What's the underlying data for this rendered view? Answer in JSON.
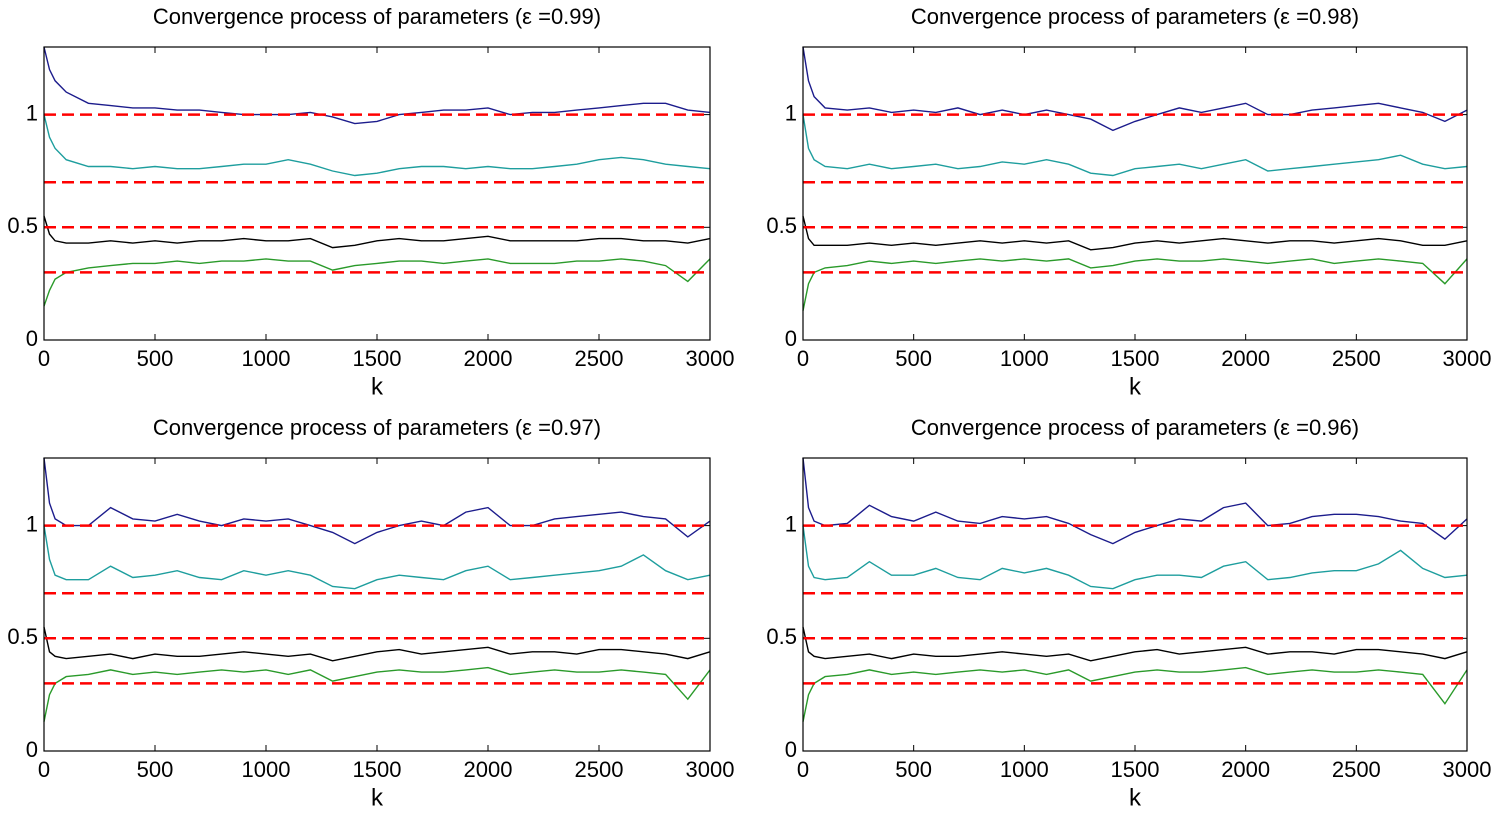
{
  "chart_data": [
    {
      "type": "line",
      "title": "Convergence process of parameters (ε =0.99)",
      "x_label": "k",
      "x": [
        0,
        25,
        50,
        100,
        200,
        300,
        400,
        500,
        600,
        700,
        800,
        900,
        1000,
        1100,
        1200,
        1300,
        1400,
        1500,
        1600,
        1700,
        1800,
        1900,
        2000,
        2100,
        2200,
        2300,
        2400,
        2500,
        2600,
        2700,
        2800,
        2900,
        3000
      ],
      "series": [
        {
          "color": "#1c1c8c",
          "values": [
            1.3,
            1.2,
            1.15,
            1.1,
            1.05,
            1.04,
            1.03,
            1.03,
            1.02,
            1.02,
            1.01,
            1.0,
            1.0,
            1.0,
            1.01,
            0.99,
            0.96,
            0.97,
            1.0,
            1.01,
            1.02,
            1.02,
            1.03,
            1.0,
            1.01,
            1.01,
            1.02,
            1.03,
            1.04,
            1.05,
            1.05,
            1.02,
            1.01
          ]
        },
        {
          "color": "#1e9e9e",
          "values": [
            1.0,
            0.9,
            0.85,
            0.8,
            0.77,
            0.77,
            0.76,
            0.77,
            0.76,
            0.76,
            0.77,
            0.78,
            0.78,
            0.8,
            0.78,
            0.75,
            0.73,
            0.74,
            0.76,
            0.77,
            0.77,
            0.76,
            0.77,
            0.76,
            0.76,
            0.77,
            0.78,
            0.8,
            0.81,
            0.8,
            0.78,
            0.77,
            0.76
          ]
        },
        {
          "color": "#000000",
          "values": [
            0.55,
            0.47,
            0.44,
            0.43,
            0.43,
            0.44,
            0.43,
            0.44,
            0.43,
            0.44,
            0.44,
            0.45,
            0.44,
            0.44,
            0.45,
            0.41,
            0.42,
            0.44,
            0.45,
            0.44,
            0.44,
            0.45,
            0.46,
            0.44,
            0.44,
            0.44,
            0.44,
            0.45,
            0.45,
            0.44,
            0.44,
            0.43,
            0.45
          ]
        },
        {
          "color": "#2a9a2a",
          "values": [
            0.15,
            0.22,
            0.27,
            0.3,
            0.32,
            0.33,
            0.34,
            0.34,
            0.35,
            0.34,
            0.35,
            0.35,
            0.36,
            0.35,
            0.35,
            0.31,
            0.33,
            0.34,
            0.35,
            0.35,
            0.34,
            0.35,
            0.36,
            0.34,
            0.34,
            0.34,
            0.35,
            0.35,
            0.36,
            0.35,
            0.33,
            0.26,
            0.36
          ]
        }
      ],
      "reference_lines": [
        1,
        0.7,
        0.5,
        0.3
      ],
      "reference_color": "#ff0000",
      "reference_style": "dashed",
      "xlim": [
        0,
        3000
      ],
      "xticks": [
        0,
        500,
        1000,
        1500,
        2000,
        2500,
        3000
      ],
      "ylim": [
        0,
        1.3
      ],
      "yticks": [
        0,
        0.5,
        1
      ]
    },
    {
      "type": "line",
      "title": "Convergence process of parameters (ε =0.98)",
      "x_label": "k",
      "x": [
        0,
        25,
        50,
        100,
        200,
        300,
        400,
        500,
        600,
        700,
        800,
        900,
        1000,
        1100,
        1200,
        1300,
        1400,
        1500,
        1600,
        1700,
        1800,
        1900,
        2000,
        2100,
        2200,
        2300,
        2400,
        2500,
        2600,
        2700,
        2800,
        2900,
        3000
      ],
      "series": [
        {
          "color": "#1c1c8c",
          "values": [
            1.3,
            1.15,
            1.08,
            1.03,
            1.02,
            1.03,
            1.01,
            1.02,
            1.01,
            1.03,
            1.0,
            1.02,
            1.0,
            1.02,
            1.0,
            0.98,
            0.93,
            0.97,
            1.0,
            1.03,
            1.01,
            1.03,
            1.05,
            1.0,
            1.0,
            1.02,
            1.03,
            1.04,
            1.05,
            1.03,
            1.01,
            0.97,
            1.02
          ]
        },
        {
          "color": "#1e9e9e",
          "values": [
            1.0,
            0.85,
            0.8,
            0.77,
            0.76,
            0.78,
            0.76,
            0.77,
            0.78,
            0.76,
            0.77,
            0.79,
            0.78,
            0.8,
            0.78,
            0.74,
            0.73,
            0.76,
            0.77,
            0.78,
            0.76,
            0.78,
            0.8,
            0.75,
            0.76,
            0.77,
            0.78,
            0.79,
            0.8,
            0.82,
            0.78,
            0.76,
            0.77
          ]
        },
        {
          "color": "#000000",
          "values": [
            0.55,
            0.45,
            0.42,
            0.42,
            0.42,
            0.43,
            0.42,
            0.43,
            0.42,
            0.43,
            0.44,
            0.43,
            0.44,
            0.43,
            0.44,
            0.4,
            0.41,
            0.43,
            0.44,
            0.43,
            0.44,
            0.45,
            0.44,
            0.43,
            0.44,
            0.44,
            0.43,
            0.44,
            0.45,
            0.44,
            0.42,
            0.42,
            0.44
          ]
        },
        {
          "color": "#2a9a2a",
          "values": [
            0.13,
            0.25,
            0.3,
            0.32,
            0.33,
            0.35,
            0.34,
            0.35,
            0.34,
            0.35,
            0.36,
            0.35,
            0.36,
            0.35,
            0.36,
            0.32,
            0.33,
            0.35,
            0.36,
            0.35,
            0.35,
            0.36,
            0.35,
            0.34,
            0.35,
            0.36,
            0.34,
            0.35,
            0.36,
            0.35,
            0.34,
            0.25,
            0.36
          ]
        }
      ],
      "reference_lines": [
        1,
        0.7,
        0.5,
        0.3
      ],
      "reference_color": "#ff0000",
      "reference_style": "dashed",
      "xlim": [
        0,
        3000
      ],
      "xticks": [
        0,
        500,
        1000,
        1500,
        2000,
        2500,
        3000
      ],
      "ylim": [
        0,
        1.3
      ],
      "yticks": [
        0,
        0.5,
        1
      ]
    },
    {
      "type": "line",
      "title": "Convergence process of parameters (ε =0.97)",
      "x_label": "k",
      "x": [
        0,
        25,
        50,
        100,
        200,
        300,
        400,
        500,
        600,
        700,
        800,
        900,
        1000,
        1100,
        1200,
        1300,
        1400,
        1500,
        1600,
        1700,
        1800,
        1900,
        2000,
        2100,
        2200,
        2300,
        2400,
        2500,
        2600,
        2700,
        2800,
        2900,
        3000
      ],
      "series": [
        {
          "color": "#1c1c8c",
          "values": [
            1.3,
            1.1,
            1.03,
            1.0,
            1.0,
            1.08,
            1.03,
            1.02,
            1.05,
            1.02,
            1.0,
            1.03,
            1.02,
            1.03,
            1.0,
            0.97,
            0.92,
            0.97,
            1.0,
            1.02,
            1.0,
            1.06,
            1.08,
            1.0,
            1.0,
            1.03,
            1.04,
            1.05,
            1.06,
            1.04,
            1.03,
            0.95,
            1.02
          ]
        },
        {
          "color": "#1e9e9e",
          "values": [
            1.0,
            0.85,
            0.78,
            0.76,
            0.76,
            0.82,
            0.77,
            0.78,
            0.8,
            0.77,
            0.76,
            0.8,
            0.78,
            0.8,
            0.78,
            0.73,
            0.72,
            0.76,
            0.78,
            0.77,
            0.76,
            0.8,
            0.82,
            0.76,
            0.77,
            0.78,
            0.79,
            0.8,
            0.82,
            0.87,
            0.8,
            0.76,
            0.78
          ]
        },
        {
          "color": "#000000",
          "values": [
            0.55,
            0.44,
            0.42,
            0.41,
            0.42,
            0.43,
            0.41,
            0.43,
            0.42,
            0.42,
            0.43,
            0.44,
            0.43,
            0.42,
            0.43,
            0.4,
            0.42,
            0.44,
            0.45,
            0.43,
            0.44,
            0.45,
            0.46,
            0.43,
            0.44,
            0.44,
            0.43,
            0.45,
            0.45,
            0.44,
            0.43,
            0.41,
            0.44
          ]
        },
        {
          "color": "#2a9a2a",
          "values": [
            0.13,
            0.25,
            0.3,
            0.33,
            0.34,
            0.36,
            0.34,
            0.35,
            0.34,
            0.35,
            0.36,
            0.35,
            0.36,
            0.34,
            0.36,
            0.31,
            0.33,
            0.35,
            0.36,
            0.35,
            0.35,
            0.36,
            0.37,
            0.34,
            0.35,
            0.36,
            0.35,
            0.35,
            0.36,
            0.35,
            0.34,
            0.23,
            0.36
          ]
        }
      ],
      "reference_lines": [
        1,
        0.7,
        0.5,
        0.3
      ],
      "reference_color": "#ff0000",
      "reference_style": "dashed",
      "xlim": [
        0,
        3000
      ],
      "xticks": [
        0,
        500,
        1000,
        1500,
        2000,
        2500,
        3000
      ],
      "ylim": [
        0,
        1.3
      ],
      "yticks": [
        0,
        0.5,
        1
      ]
    },
    {
      "type": "line",
      "title": "Convergence process of parameters (ε =0.96)",
      "x_label": "k",
      "x": [
        0,
        25,
        50,
        100,
        200,
        300,
        400,
        500,
        600,
        700,
        800,
        900,
        1000,
        1100,
        1200,
        1300,
        1400,
        1500,
        1600,
        1700,
        1800,
        1900,
        2000,
        2100,
        2200,
        2300,
        2400,
        2500,
        2600,
        2700,
        2800,
        2900,
        3000
      ],
      "series": [
        {
          "color": "#1c1c8c",
          "values": [
            1.3,
            1.08,
            1.02,
            1.0,
            1.01,
            1.09,
            1.04,
            1.02,
            1.06,
            1.02,
            1.01,
            1.04,
            1.03,
            1.04,
            1.01,
            0.96,
            0.92,
            0.97,
            1.0,
            1.03,
            1.02,
            1.08,
            1.1,
            1.0,
            1.01,
            1.04,
            1.05,
            1.05,
            1.04,
            1.02,
            1.01,
            0.94,
            1.03
          ]
        },
        {
          "color": "#1e9e9e",
          "values": [
            1.0,
            0.82,
            0.77,
            0.76,
            0.77,
            0.84,
            0.78,
            0.78,
            0.81,
            0.77,
            0.76,
            0.81,
            0.79,
            0.81,
            0.78,
            0.73,
            0.72,
            0.76,
            0.78,
            0.78,
            0.77,
            0.82,
            0.84,
            0.76,
            0.77,
            0.79,
            0.8,
            0.8,
            0.83,
            0.89,
            0.81,
            0.77,
            0.78
          ]
        },
        {
          "color": "#000000",
          "values": [
            0.55,
            0.44,
            0.42,
            0.41,
            0.42,
            0.43,
            0.41,
            0.43,
            0.42,
            0.42,
            0.43,
            0.44,
            0.43,
            0.42,
            0.43,
            0.4,
            0.42,
            0.44,
            0.45,
            0.43,
            0.44,
            0.45,
            0.46,
            0.43,
            0.44,
            0.44,
            0.43,
            0.45,
            0.45,
            0.44,
            0.43,
            0.41,
            0.44
          ]
        },
        {
          "color": "#2a9a2a",
          "values": [
            0.13,
            0.25,
            0.3,
            0.33,
            0.34,
            0.36,
            0.34,
            0.35,
            0.34,
            0.35,
            0.36,
            0.35,
            0.36,
            0.34,
            0.36,
            0.31,
            0.33,
            0.35,
            0.36,
            0.35,
            0.35,
            0.36,
            0.37,
            0.34,
            0.35,
            0.36,
            0.35,
            0.35,
            0.36,
            0.35,
            0.34,
            0.21,
            0.36
          ]
        }
      ],
      "reference_lines": [
        1,
        0.7,
        0.5,
        0.3
      ],
      "reference_color": "#ff0000",
      "reference_style": "dashed",
      "xlim": [
        0,
        3000
      ],
      "xticks": [
        0,
        500,
        1000,
        1500,
        2000,
        2500,
        3000
      ],
      "ylim": [
        0,
        1.3
      ],
      "yticks": [
        0,
        0.5,
        1
      ]
    }
  ]
}
